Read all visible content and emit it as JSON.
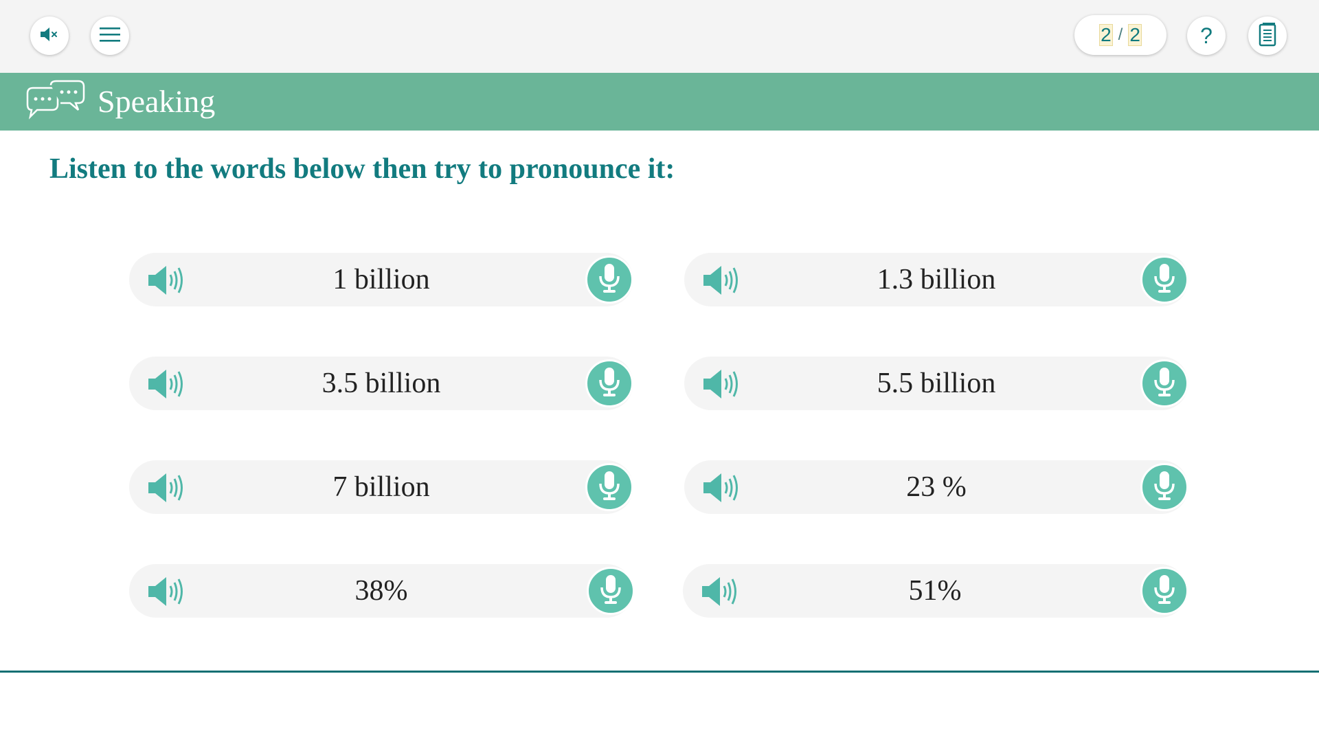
{
  "topbar": {
    "mute_icon": "speaker-muted-icon",
    "menu_icon": "hamburger-menu-icon",
    "pager": {
      "current": "2",
      "separator": "/",
      "total": "2"
    },
    "help_label": "?",
    "notes_icon": "notebook-icon"
  },
  "banner": {
    "icon": "speech-bubbles-icon",
    "title": "Speaking"
  },
  "instruction": "Listen to the words below then try to pronounce it:",
  "items": [
    {
      "label": "1 billion"
    },
    {
      "label": "1.3 billion"
    },
    {
      "label": "3.5 billion"
    },
    {
      "label": "5.5 billion"
    },
    {
      "label": "7 billion"
    },
    {
      "label": "23 %"
    },
    {
      "label": "38%"
    },
    {
      "label": "51%"
    }
  ],
  "colors": {
    "teal_dark": "#127b7f",
    "banner_green": "#6ab598",
    "mic_green": "#5fc2ad",
    "speaker_teal": "#4fb7a8",
    "row_bg": "#f4f4f4"
  }
}
